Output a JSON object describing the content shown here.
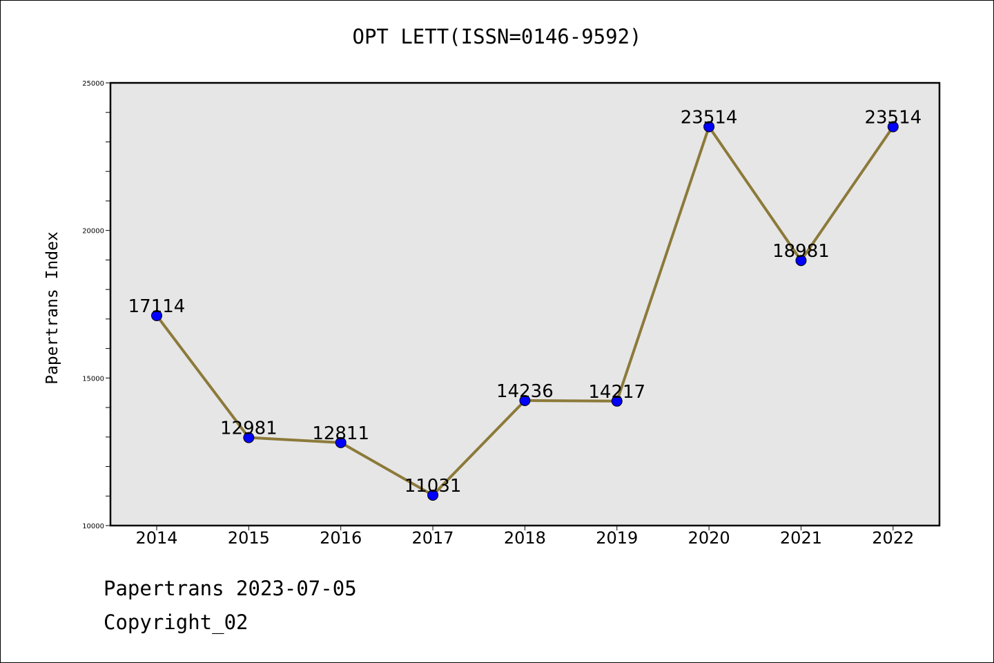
{
  "chart_data": {
    "type": "line",
    "title": "OPT LETT(ISSN=0146-9592)",
    "xlabel": "",
    "ylabel": "Papertrans Index",
    "categories": [
      "2014",
      "2015",
      "2016",
      "2017",
      "2018",
      "2019",
      "2020",
      "2021",
      "2022"
    ],
    "values": [
      17114,
      12981,
      12811,
      11031,
      14236,
      14217,
      23514,
      18981,
      23514
    ],
    "ylim": [
      10000,
      25000
    ],
    "yticks": [
      10000,
      15000,
      20000,
      25000
    ],
    "grid": false,
    "legend": "none",
    "colors": {
      "line": "#8c7a3a",
      "marker": "#0000ff",
      "plot_background": "#e6e6e6"
    }
  },
  "footer": {
    "line1": "Papertrans 2023-07-05",
    "line2": "Copyright_02"
  }
}
